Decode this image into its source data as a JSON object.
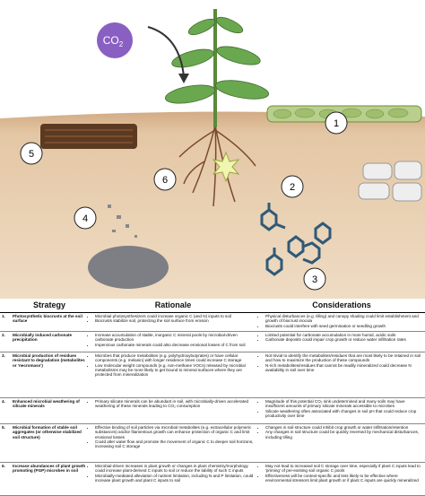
{
  "illustration": {
    "co2": {
      "main": "CO",
      "sub": "2"
    },
    "markers": [
      {
        "label": "1"
      },
      {
        "label": "2"
      },
      {
        "label": "3"
      },
      {
        "label": "4"
      },
      {
        "label": "5"
      },
      {
        "label": "6"
      }
    ]
  },
  "table": {
    "header": [
      "Strategy",
      "Rationale",
      "Considerations"
    ],
    "rows": [
      {
        "number": "1.",
        "strategy": "Photosynthetic biocrusts at the soil surface",
        "rationale": [
          "Microbial photosynthesizers could increase organic C (and N) inputs to soil",
          "Biocrusts stabilize soil, protecting the soil surface from erosion"
        ],
        "considerations": [
          "Physical disturbances (e.g. tilling) and canopy shading could limit establishment and growth of biocrust inocula",
          "Biocrusts could interfere with seed germination or seedling growth"
        ]
      },
      {
        "number": "2.",
        "strategy": "Microbially induced carbonate precipitation",
        "rationale": [
          "Increase accumulation of stable, inorganic C mineral pools by microbial-driven carbonate production",
          "Impervious carbonate minerals could also decrease erosional losses of C from soil"
        ],
        "considerations": [
          "Limited potential for carbonate accumulation in more humid, acidic soils",
          "Carbonate deposits could impair crop growth or reduce water infiltration rates"
        ]
      },
      {
        "number": "3.",
        "strategy": "Microbial production of residues resistant to degradation (metabolites or 'necromass')",
        "rationale": [
          "Microbes that produce metabolites (e.g. polyhydroxybutyrates) or have cellular components (e.g. melanin) with longer residence times could increase C storage",
          "Low molecular weight compounds (e.g. non-methane VOCs) released by microbial metabolisms may be more likely to get bound to mineral surfaces where they are protected from mineralization"
        ],
        "considerations": [
          "Not trivial to identify the metabolites/residues that are most likely to be retained in soil and how to maximize the production of these compounds",
          "N-rich metabolites/residues that cannot be readily mineralized could decrease N availability in soil over time"
        ]
      },
      {
        "number": "4.",
        "strategy": "Enhanced microbial weathering of silicate minerals",
        "rationale": [
          "Primary silicate minerals can be abundant in soil, with microbially-driven accelerated weathering of these minerals leading to CO₂ consumption"
        ],
        "considerations": [
          "Magnitude of this potential CO₂ sink undetermined and many soils may have insufficient amounts of primary silicate minerals accessible to microbes",
          "Silicate weathering often associated with changes in soil pH that could reduce crop productivity over time"
        ]
      },
      {
        "number": "5.",
        "strategy": "Microbial formation of stable soil aggregates (or otherwise stabilized soil structure)",
        "rationale": [
          "Effective binding of soil particles via microbial metabolites (e.g. extracellular polymeric substances) and/or filamentous growth can enhance protection of organic C and limit erosional losses",
          "Could alter water flow and promote the movement of organic C to deeper soil horizons, increasing soil C storage"
        ],
        "considerations": [
          "Changes in soil structure could inhibit crop growth or water infiltration/retention",
          "Any changes in soil structure could be quickly reversed by mechanical disturbances, including tilling"
        ]
      },
      {
        "number": "6.",
        "strategy": "Increase abundances of plant growth promoting (PGP) microbes in soil",
        "rationale": [
          "Microbial-driven increases in plant growth or changes in plant chemistry/morphology could increase plant-derived C inputs to soil or reduce the lability of such C inputs",
          "Microbially-mediated alleviation of nutrient limitation, including N and P limitation, could increase plant growth and plant C inputs to soil"
        ],
        "considerations": [
          "May not lead to increased soil C storage over time, especially if plant C inputs lead to 'priming' of pre-existing soil organic C pools",
          "Effectiveness will be context-specific and less likely to be effective where environmental stressors limit plant growth or if plant C inputs are quickly mineralized"
        ]
      }
    ]
  }
}
